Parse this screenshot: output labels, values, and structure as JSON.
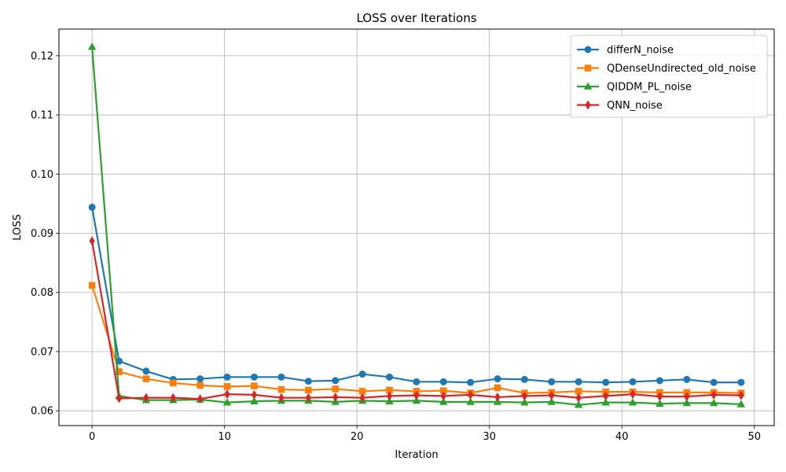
{
  "chart_data": {
    "type": "line",
    "title": "LOSS over Iterations",
    "xlabel": "Iteration",
    "ylabel": "LOSS",
    "xlim": [
      -2.5,
      51.5
    ],
    "ylim": [
      0.0575,
      0.1245
    ],
    "xticks": [
      0,
      10,
      20,
      30,
      40,
      50
    ],
    "yticks": [
      0.06,
      0.07,
      0.08,
      0.09,
      0.1,
      0.11,
      0.12
    ],
    "ytick_labels": [
      "0.06",
      "0.07",
      "0.08",
      "0.09",
      "0.10",
      "0.11",
      "0.12"
    ],
    "grid": true,
    "legend_position": "top-right",
    "x": [
      0,
      2.04,
      4.08,
      6.12,
      8.16,
      10.2,
      12.24,
      14.29,
      16.33,
      18.37,
      20.41,
      22.45,
      24.49,
      26.53,
      28.57,
      30.61,
      32.65,
      34.69,
      36.73,
      38.78,
      40.82,
      42.86,
      44.9,
      46.94,
      49
    ],
    "series": [
      {
        "name": "differN_noise",
        "color": "#1f77b4",
        "marker": "circle",
        "values": [
          0.0944,
          0.0684,
          0.0667,
          0.0653,
          0.0654,
          0.0657,
          0.0657,
          0.0657,
          0.065,
          0.0651,
          0.0662,
          0.0657,
          0.0649,
          0.0649,
          0.0648,
          0.0654,
          0.0653,
          0.0649,
          0.0649,
          0.0648,
          0.0649,
          0.0651,
          0.0653,
          0.0648,
          0.0648
        ]
      },
      {
        "name": "QDenseUndirected_old_noise",
        "color": "#ff7f0e",
        "marker": "square",
        "values": [
          0.0812,
          0.0666,
          0.0654,
          0.0647,
          0.0643,
          0.0641,
          0.0642,
          0.0636,
          0.0635,
          0.0637,
          0.0633,
          0.0635,
          0.0633,
          0.0634,
          0.063,
          0.0639,
          0.063,
          0.0631,
          0.0633,
          0.0632,
          0.0632,
          0.0631,
          0.0631,
          0.0631,
          0.063
        ]
      },
      {
        "name": "QIDDM_PL_noise",
        "color": "#2ca02c",
        "marker": "triangle",
        "values": [
          0.1215,
          0.0625,
          0.0618,
          0.0618,
          0.0619,
          0.0614,
          0.0616,
          0.0617,
          0.0617,
          0.0615,
          0.0617,
          0.0616,
          0.0617,
          0.0615,
          0.0615,
          0.0615,
          0.0614,
          0.0615,
          0.061,
          0.0614,
          0.0614,
          0.0612,
          0.0613,
          0.0613,
          0.0611
        ]
      },
      {
        "name": "QNN_noise",
        "color": "#d62728",
        "marker": "diamond",
        "values": [
          0.0887,
          0.0621,
          0.0622,
          0.0622,
          0.062,
          0.0628,
          0.0627,
          0.0622,
          0.0622,
          0.0623,
          0.0622,
          0.0625,
          0.0626,
          0.0625,
          0.0627,
          0.0623,
          0.0625,
          0.0626,
          0.0622,
          0.0625,
          0.0628,
          0.0624,
          0.0624,
          0.0627,
          0.0626
        ]
      }
    ]
  }
}
